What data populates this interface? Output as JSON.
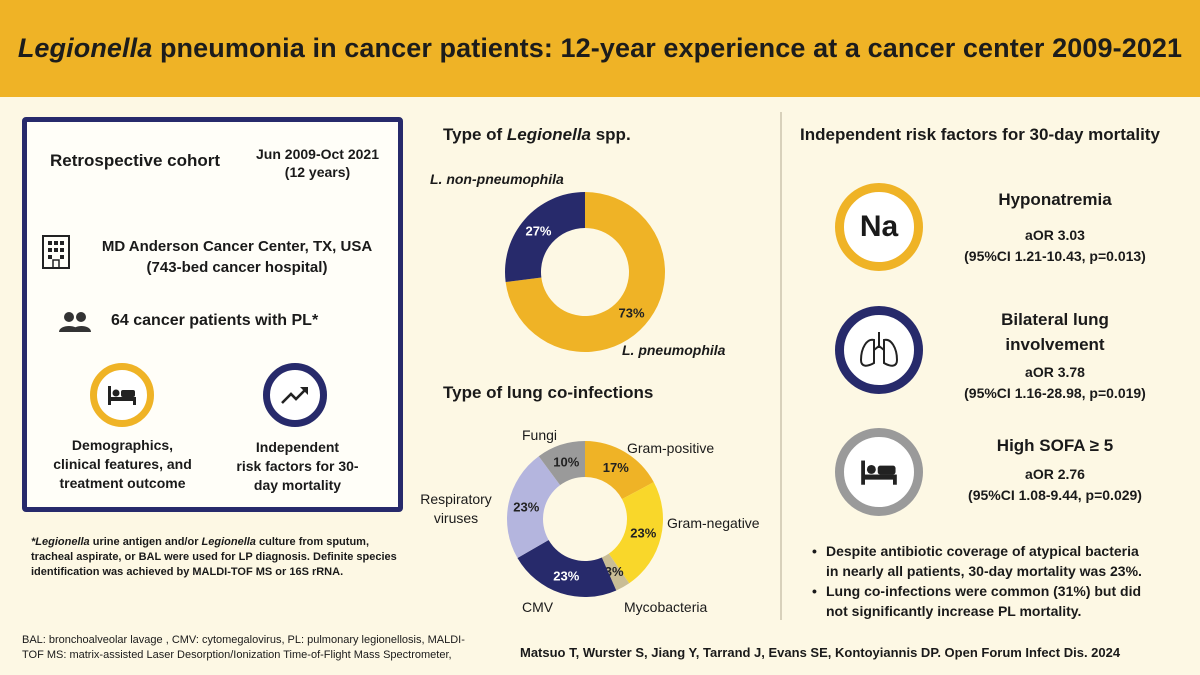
{
  "header": {
    "title_italic": "Legionella",
    "title_rest": " pneumonia in cancer patients: 12-year experience at a cancer center 2009-2021"
  },
  "colors": {
    "gold": "#efb326",
    "navy": "#272a6b",
    "yellow": "#f9d72a",
    "lavender": "#b4b5de",
    "gray": "#9a9a9a",
    "tan": "#c9bd95"
  },
  "cohort": {
    "design": "Retrospective cohort",
    "period_line1": "Jun 2009-Oct 2021",
    "period_line2": "(12 years)",
    "site_line1": "MD Anderson Cancer Center, TX, USA",
    "site_line2": "(743-bed cancer hospital)",
    "site_icon": "building-icon",
    "patients": "64 cancer patients with PL*",
    "patients_icon": "people-icon",
    "outcome1_icon": "bed-icon",
    "outcome1_line1": "Demographics,",
    "outcome1_line2": "clinical features, and",
    "outcome1_line3": "treatment outcome",
    "outcome2_icon": "trend-up-icon",
    "outcome2_line1": "Independent",
    "outcome2_line2": "risk factors for 30-",
    "outcome2_line3": "day mortality"
  },
  "footnote": {
    "line1_a": "*Legionella",
    "line1_b": " urine antigen and/or ",
    "line1_c": "Legionella",
    "line1_d": " culture from sputum,",
    "line2": "tracheal aspirate, or BAL were used for LP diagnosis. Definite species",
    "line3": "identification was achieved by MALDI-TOF MS or 16S rRNA."
  },
  "abbrev": {
    "line1": "BAL:  bronchoalveolar lavage , CMV: cytomegalovirus, PL: pulmonary legionellosis, MALDI-",
    "line2": "TOF MS: matrix-assisted Laser Desorption/Ionization Time-of-Flight Mass Spectrometer,"
  },
  "citation": "Matsuo T, Wurster S, Jiang Y, Tarrand J, Evans SE, Kontoyiannis DP. Open Forum Infect Dis. 2024",
  "chart_data": [
    {
      "type": "pie",
      "title_a": "Type of ",
      "title_b": "Legionella",
      "title_c": " spp.",
      "slices": [
        {
          "label_a": "L. pneumophila",
          "value": 73,
          "display": "73%",
          "color": "#efb326"
        },
        {
          "label_a": "L. non-",
          "label_b": "pneumophila",
          "value": 27,
          "display": "27%",
          "color": "#272a6b"
        }
      ]
    },
    {
      "type": "pie",
      "title": "Type of lung co-infections",
      "slices": [
        {
          "label": "Gram-positive",
          "value": 17,
          "display": "17%",
          "color": "#efb326"
        },
        {
          "label": "Gram-negative",
          "value": 23,
          "display": "23%",
          "color": "#f9d72a"
        },
        {
          "label": "Mycobacteria",
          "value": 3,
          "display": "3%",
          "color": "#c9bd95"
        },
        {
          "label": "CMV",
          "value": 23,
          "display": "23%",
          "color": "#272a6b"
        },
        {
          "label": "Respiratory",
          "label2": "viruses",
          "value": 23,
          "display": "23%",
          "color": "#b4b5de"
        },
        {
          "label": "Fungi",
          "value": 10,
          "display": "10%",
          "color": "#9a9a9a"
        }
      ]
    }
  ],
  "risk": {
    "title": "Independent risk factors for 30-day mortality",
    "factors": [
      {
        "icon_text": "Na",
        "icon": "sodium-icon",
        "name": "Hyponatremia",
        "aor": "aOR 3.03",
        "ci": "(95%CI 1.21-10.43, p=0.013)"
      },
      {
        "icon": "lungs-icon",
        "name_line1": "Bilateral lung",
        "name_line2": "involvement",
        "aor": "aOR 3.78",
        "ci": "(95%CI 1.16-28.98, p=0.019)"
      },
      {
        "icon": "bed-icon",
        "name": "High SOFA ≥ 5",
        "aor": "aOR 2.76",
        "ci": "(95%CI 1.08-9.44, p=0.029)"
      }
    ],
    "bullets": [
      {
        "line1": "Despite antibiotic coverage of atypical bacteria",
        "line2": "in nearly all patients, 30-day mortality was 23%."
      },
      {
        "line1": "Lung co-infections were common (31%) but did",
        "line2": "not significantly increase PL mortality."
      }
    ]
  }
}
